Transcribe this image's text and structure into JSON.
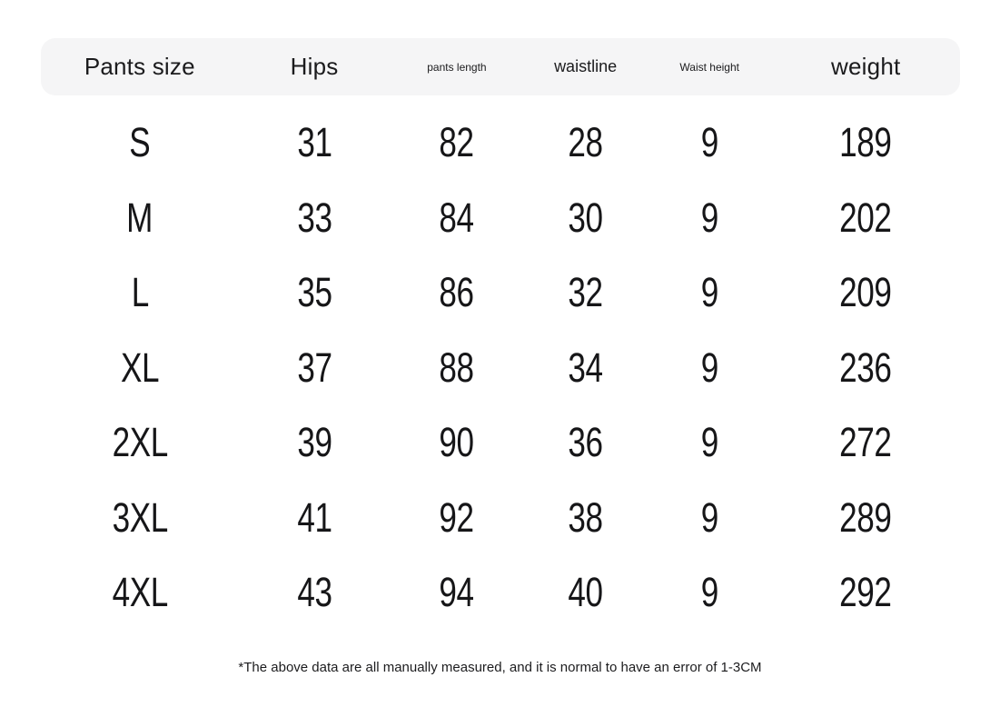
{
  "chart_data": {
    "type": "table",
    "columns": [
      "Pants size",
      "Hips",
      "pants length",
      "waistline",
      "Waist height",
      "weight"
    ],
    "rows": [
      [
        "S",
        "31",
        "82",
        "28",
        "9",
        "189"
      ],
      [
        "M",
        "33",
        "84",
        "30",
        "9",
        "202"
      ],
      [
        "L",
        "35",
        "86",
        "32",
        "9",
        "209"
      ],
      [
        "XL",
        "37",
        "88",
        "34",
        "9",
        "236"
      ],
      [
        "2XL",
        "39",
        "90",
        "36",
        "9",
        "272"
      ],
      [
        "3XL",
        "41",
        "92",
        "38",
        "9",
        "289"
      ],
      [
        "4XL",
        "43",
        "94",
        "40",
        "9",
        "292"
      ]
    ]
  },
  "footnote": "*The above data are all manually measured, and it is normal to have an error of 1-3CM",
  "colors": {
    "background": "#ffffff",
    "header_bg": "#f5f5f6",
    "text": "#1b1b1d"
  }
}
